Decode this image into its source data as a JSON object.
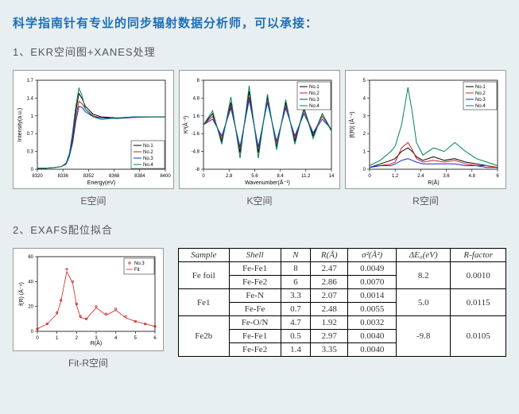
{
  "title": "科学指南针有专业的同步辐射数据分析师，可以承接：",
  "section1_label": "1、EKR空间图+XANES处理",
  "section2_label": "2、EXAFS配位拟合",
  "series_colors": {
    "no1": "#000000",
    "no2": "#d02020",
    "no3": "#1030c0",
    "no4": "#008060"
  },
  "legend_labels": [
    "No.1",
    "No.2",
    "No.3",
    "No.4"
  ],
  "chart_bg": "#ffffff",
  "axis_color": "#000000",
  "chart_E": {
    "caption": "E空间",
    "xlabel": "Energy(eV)",
    "ylabel": "Intensity(a.u.)",
    "xlim": [
      8320,
      8400
    ],
    "ylim": [
      0,
      1.7
    ],
    "x": [
      8320,
      8325,
      8330,
      8335,
      8338,
      8340,
      8342,
      8344,
      8346,
      8348,
      8350,
      8355,
      8360,
      8370,
      8380,
      8390,
      8400
    ],
    "no1": [
      0.02,
      0.02,
      0.03,
      0.05,
      0.1,
      0.25,
      0.6,
      1.1,
      1.45,
      1.35,
      1.2,
      1.05,
      1.0,
      0.98,
      1.0,
      1.0,
      1.0
    ],
    "no2": [
      0.02,
      0.02,
      0.03,
      0.05,
      0.1,
      0.25,
      0.55,
      1.0,
      1.3,
      1.25,
      1.15,
      1.02,
      0.98,
      0.97,
      0.99,
      1.0,
      1.0
    ],
    "no3": [
      0.02,
      0.02,
      0.03,
      0.05,
      0.1,
      0.25,
      0.5,
      0.9,
      1.2,
      1.18,
      1.1,
      1.0,
      0.98,
      0.97,
      0.99,
      1.0,
      1.0
    ],
    "no4": [
      0.02,
      0.02,
      0.03,
      0.05,
      0.12,
      0.3,
      0.7,
      1.2,
      1.55,
      1.4,
      1.15,
      1.0,
      0.95,
      0.98,
      1.0,
      1.0,
      1.0
    ],
    "legend_pos": "bottom-right"
  },
  "chart_K": {
    "caption": "K空间",
    "xlabel": "Wavenumber(Å⁻¹)",
    "ylabel": "K³(Å⁻³)",
    "xlim": [
      0,
      14
    ],
    "ylim": [
      -8,
      8
    ],
    "x": [
      0,
      1,
      2,
      3,
      4,
      5,
      6,
      7,
      8,
      9,
      10,
      11,
      12,
      13,
      14
    ],
    "no1": [
      0,
      2,
      -3,
      4,
      -5,
      6,
      -5,
      5,
      -4,
      4,
      -3,
      3,
      -2,
      2,
      -1
    ],
    "no2": [
      0,
      1.5,
      -2.5,
      3.5,
      -4.5,
      5,
      -4.5,
      4.5,
      -3.5,
      3.5,
      -2.5,
      2.5,
      -1.5,
      1.5,
      -1
    ],
    "no3": [
      0,
      1,
      -2,
      3,
      -4,
      4.5,
      -4,
      4,
      -3,
      3,
      -2,
      2,
      -1.5,
      1,
      -0.8
    ],
    "no4": [
      0,
      2.5,
      -3.5,
      5,
      -6,
      7,
      -6,
      5.5,
      -4.5,
      4.5,
      -3.5,
      3,
      -2.5,
      2,
      -1.2
    ],
    "legend_pos": "top-right"
  },
  "chart_R": {
    "caption": "R空间",
    "xlabel": "R(Å)",
    "ylabel": "|f(R)| (Å⁻⁴)",
    "xlim": [
      0,
      6
    ],
    "ylim": [
      0,
      5
    ],
    "x": [
      0,
      0.5,
      1.0,
      1.2,
      1.5,
      1.8,
      2.0,
      2.2,
      2.5,
      3.0,
      3.5,
      4.0,
      4.5,
      5.0,
      5.5,
      6.0
    ],
    "no1": [
      0.1,
      0.3,
      0.5,
      0.6,
      1.0,
      1.2,
      1.0,
      0.7,
      0.5,
      0.7,
      0.5,
      0.6,
      0.4,
      0.3,
      0.2,
      0.1
    ],
    "no2": [
      0.1,
      0.2,
      0.3,
      0.4,
      1.2,
      1.5,
      1.1,
      0.6,
      0.4,
      0.5,
      0.4,
      0.5,
      0.3,
      0.2,
      0.2,
      0.1
    ],
    "no3": [
      0.1,
      0.2,
      0.2,
      0.3,
      0.5,
      0.6,
      0.5,
      0.4,
      0.3,
      0.3,
      0.3,
      0.3,
      0.2,
      0.2,
      0.1,
      0.1
    ],
    "no4": [
      0.2,
      0.5,
      1.0,
      1.3,
      2.5,
      4.6,
      3.2,
      1.5,
      0.8,
      1.2,
      1.0,
      1.5,
      1.0,
      0.6,
      0.4,
      0.2
    ],
    "legend_pos": "top-right"
  },
  "chart_FitR": {
    "caption": "Fit-R空间",
    "xlabel": "R(Å)",
    "ylabel": "f(R) (Å⁻⁴)",
    "xlim": [
      0,
      6
    ],
    "ylim": [
      0,
      60
    ],
    "x": [
      0,
      0.5,
      1.0,
      1.2,
      1.5,
      1.8,
      2.0,
      2.2,
      2.5,
      3.0,
      3.5,
      4.0,
      4.5,
      5.0,
      5.5,
      6.0
    ],
    "exp": [
      2,
      6,
      15,
      25,
      50,
      40,
      22,
      12,
      10,
      20,
      14,
      18,
      12,
      8,
      6,
      4
    ],
    "fit": [
      2,
      6,
      14,
      24,
      48,
      39,
      21,
      11,
      10,
      19,
      13,
      17,
      11,
      8,
      6,
      4
    ],
    "colors": {
      "exp": "#d02020",
      "fit": "#d02020"
    },
    "legend": [
      "No.3",
      "Fit"
    ],
    "legend_pos": "top-right"
  },
  "table": {
    "headers": [
      "Sample",
      "Shell",
      "N",
      "R(Å)",
      "σ²(Å²)",
      "ΔE₀(eV)",
      "R-factor"
    ],
    "groups": [
      {
        "sample": "Fe foil",
        "rows": [
          {
            "shell": "Fe-Fe1",
            "N": "8",
            "R": "2.47",
            "s2": "0.0049"
          },
          {
            "shell": "Fe-Fe2",
            "N": "6",
            "R": "2.86",
            "s2": "0.0070"
          }
        ],
        "dE": "8.2",
        "Rf": "0.0010"
      },
      {
        "sample": "Fe1",
        "rows": [
          {
            "shell": "Fe-N",
            "N": "3.3",
            "R": "2.07",
            "s2": "0.0014"
          },
          {
            "shell": "Fe-Fe",
            "N": "0.7",
            "R": "2.48",
            "s2": "0.0055"
          }
        ],
        "dE": "5.0",
        "Rf": "0.0115"
      },
      {
        "sample": "Fe2b",
        "rows": [
          {
            "shell": "Fe-O/N",
            "N": "4.7",
            "R": "1.92",
            "s2": "0.0032"
          },
          {
            "shell": "Fe-Fe1",
            "N": "0.5",
            "R": "2.97",
            "s2": "0.0040"
          },
          {
            "shell": "Fe-Fe2",
            "N": "1.4",
            "R": "3.35",
            "s2": "0.0040"
          }
        ],
        "dE": "-9.8",
        "Rf": "0.0105"
      }
    ]
  }
}
